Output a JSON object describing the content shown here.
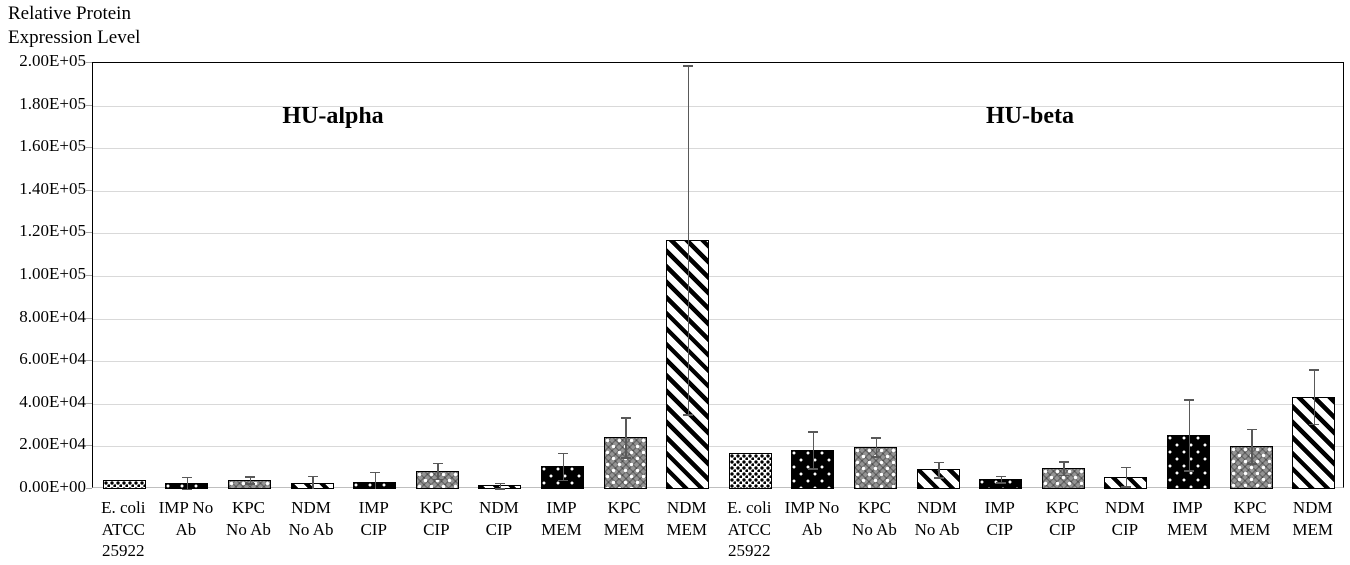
{
  "title_lines": [
    "Relative Protein",
    "Expression Level"
  ],
  "chart_data": {
    "type": "bar",
    "title": "Relative Protein Expression Level",
    "ylabel": "Relative Protein Expression Level",
    "xlabel": "",
    "ylim": [
      0,
      200000
    ],
    "grid": true,
    "legend_position": "none",
    "y_tick_values": [
      0,
      20000,
      40000,
      60000,
      80000,
      100000,
      120000,
      140000,
      160000,
      180000,
      200000
    ],
    "y_tick_labels": [
      "0.00E+00",
      "2.00E+04",
      "4.00E+04",
      "6.00E+04",
      "8.00E+04",
      "1.00E+05",
      "1.20E+05",
      "1.40E+05",
      "1.60E+05",
      "1.80E+05",
      "2.00E+05"
    ],
    "group_labels": [
      "HU-alpha",
      "HU-beta"
    ],
    "categories": [
      [
        "E. coli",
        "ATCC",
        "25922"
      ],
      [
        "IMP No",
        "Ab"
      ],
      [
        "KPC",
        "No Ab"
      ],
      [
        "NDM",
        "No Ab"
      ],
      [
        "IMP",
        "CIP"
      ],
      [
        "KPC",
        "CIP"
      ],
      [
        "NDM",
        "CIP"
      ],
      [
        "IMP",
        "MEM"
      ],
      [
        "KPC",
        "MEM"
      ],
      [
        "NDM",
        "MEM"
      ],
      [
        "E. coli",
        "ATCC",
        "25922"
      ],
      [
        "IMP No",
        "Ab"
      ],
      [
        "KPC",
        "No Ab"
      ],
      [
        "NDM",
        "No Ab"
      ],
      [
        "IMP",
        "CIP"
      ],
      [
        "KPC",
        "CIP"
      ],
      [
        "NDM",
        "CIP"
      ],
      [
        "IMP",
        "MEM"
      ],
      [
        "KPC",
        "MEM"
      ],
      [
        "NDM",
        "MEM"
      ]
    ],
    "series": [
      {
        "name": "HU-alpha",
        "values": [
          4000,
          3000,
          4300,
          2600,
          3500,
          8600,
          1700,
          10700,
          24400,
          117000
        ],
        "errors": [
          0,
          2800,
          1700,
          3600,
          4700,
          3700,
          1300,
          6400,
          9400,
          82000
        ]
      },
      {
        "name": "HU-beta",
        "values": [
          17000,
          18500,
          19800,
          9200,
          4700,
          9900,
          5800,
          25500,
          20300,
          43400
        ],
        "errors": [
          0,
          8700,
          4500,
          3600,
          1500,
          3100,
          4600,
          16600,
          8100,
          12800
        ]
      }
    ],
    "pattern_by_strain": [
      "ecoli",
      "imp",
      "kpc",
      "ndm",
      "imp",
      "kpc",
      "ndm",
      "imp",
      "kpc",
      "ndm"
    ]
  },
  "colors": {
    "background": "#ffffff",
    "gridline": "#d9d9d9",
    "axis_border": "#000000",
    "baseline": "#bfbfbf",
    "error_bar": "#595959",
    "bar_black": "#000000",
    "bar_gray": "#949494"
  }
}
